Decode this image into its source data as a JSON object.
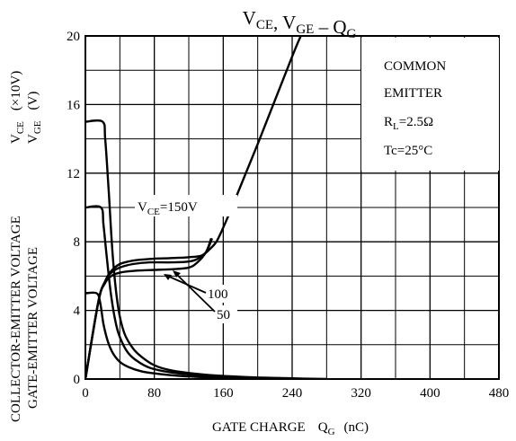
{
  "chart_data": {
    "type": "line",
    "title": {
      "parts": [
        {
          "t": "V",
          "sub": "CE"
        },
        {
          "t": ", "
        },
        {
          "t": "V",
          "sub": "GE"
        },
        {
          "t": "  –  "
        },
        {
          "t": "Q",
          "sub": "G"
        }
      ]
    },
    "xlabel": {
      "text": "GATE CHARGE",
      "q": "Q",
      "qsub": "G",
      "unit": "(nC)"
    },
    "ylabel": {
      "line1": "COLLECTOR-EMITTER VOLTAGE",
      "line2": "GATE-EMITTER VOLTAGE",
      "vce": "V",
      "vce_sub": "CE",
      "vce_unit": "(×10V)",
      "vge": "V",
      "vge_sub": "GE",
      "vge_unit": "(V)"
    },
    "xlim": [
      0,
      480
    ],
    "ylim": [
      0,
      20
    ],
    "x_ticks": [
      "0",
      "80",
      "160",
      "240",
      "320",
      "400",
      "480"
    ],
    "y_ticks": [
      "0",
      "4",
      "8",
      "12",
      "16",
      "20"
    ],
    "grid": true,
    "conditions": {
      "line1": "COMMON",
      "line2": "EMITTER",
      "rl_main": "R",
      "rl_sub": "L",
      "rl_val": "=2.5Ω",
      "tc": "Tc=25°C"
    },
    "curve_labels": {
      "vce150": {
        "v": "V",
        "sub": "CE",
        "val": "=150V"
      },
      "vce100": "100",
      "vce50": "50"
    },
    "series": [
      {
        "id": "vge-150",
        "x": [
          0,
          15,
          23,
          30,
          40,
          55,
          75,
          100,
          120,
          135,
          145,
          152,
          158,
          170,
          200,
          240,
          250
        ],
        "y": [
          0,
          4.5,
          5.7,
          6.3,
          6.7,
          6.9,
          7.0,
          7.05,
          7.1,
          7.2,
          7.6,
          8.0,
          8.6,
          10.0,
          13.7,
          18.8,
          20.0
        ]
      },
      {
        "id": "vge-100",
        "x": [
          0,
          15,
          23,
          30,
          40,
          55,
          75,
          100,
          120,
          130,
          140,
          147
        ],
        "y": [
          0,
          4.5,
          5.7,
          6.2,
          6.5,
          6.7,
          6.8,
          6.8,
          6.85,
          7.0,
          7.4,
          8.2
        ]
      },
      {
        "id": "vge-50",
        "x": [
          0,
          15,
          23,
          30,
          40,
          55,
          75,
          100,
          120,
          130,
          140,
          146
        ],
        "y": [
          0,
          4.5,
          5.6,
          6.0,
          6.2,
          6.3,
          6.35,
          6.4,
          6.5,
          6.8,
          7.4,
          8.2
        ]
      },
      {
        "id": "vce-150",
        "x": [
          0,
          20,
          23,
          27,
          32,
          38,
          45,
          55,
          65,
          80,
          100,
          130,
          160,
          200,
          240,
          280
        ],
        "y": [
          15,
          15,
          14,
          11,
          7,
          4.2,
          2.7,
          1.8,
          1.3,
          0.8,
          0.5,
          0.3,
          0.18,
          0.09,
          0.04,
          0.0
        ]
      },
      {
        "id": "vce-100",
        "x": [
          0,
          18,
          21,
          25,
          30,
          36,
          42,
          50,
          60,
          75,
          100,
          130,
          160,
          200,
          240
        ],
        "y": [
          10,
          10,
          9,
          7,
          4.8,
          3.1,
          2.2,
          1.5,
          1.05,
          0.65,
          0.38,
          0.22,
          0.12,
          0.05,
          0.0
        ]
      },
      {
        "id": "vce-50",
        "x": [
          0,
          13,
          17,
          21,
          26,
          32,
          40,
          50,
          65,
          85,
          110,
          140,
          180,
          220
        ],
        "y": [
          5,
          5,
          4.5,
          3.2,
          2.2,
          1.5,
          1.0,
          0.7,
          0.45,
          0.3,
          0.18,
          0.1,
          0.04,
          0.0
        ]
      }
    ]
  }
}
